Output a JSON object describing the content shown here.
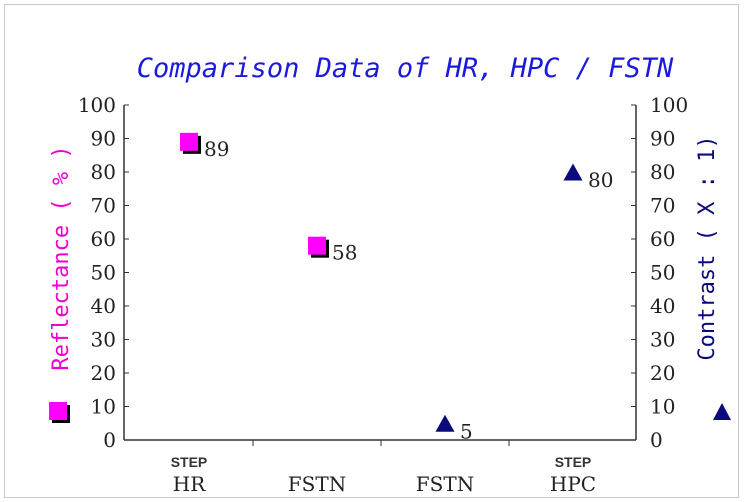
{
  "chart_data": {
    "type": "scatter",
    "title": "Comparison Data of HR, HPC / FSTN",
    "categories": [
      {
        "top": "STEP",
        "bottom": "HR"
      },
      {
        "top": "",
        "bottom": "FSTN"
      },
      {
        "top": "",
        "bottom": "FSTN"
      },
      {
        "top": "STEP",
        "bottom": "HPC"
      }
    ],
    "y_left": {
      "label": "Reflectance ( % )",
      "ylim": [
        0,
        100
      ],
      "ticks": [
        "0",
        "10",
        "20",
        "30",
        "40",
        "50",
        "60",
        "70",
        "80",
        "90",
        "100"
      ]
    },
    "y_right": {
      "label": "Contrast ( X : 1)",
      "ylim": [
        0,
        100
      ],
      "ticks": [
        "0",
        "10",
        "20",
        "30",
        "40",
        "50",
        "60",
        "70",
        "80",
        "90",
        "100"
      ]
    },
    "series": [
      {
        "axis": "left",
        "marker": "square",
        "color": "#ff00ff",
        "points": [
          {
            "category_index": 0,
            "value": 89,
            "label": "89"
          },
          {
            "category_index": 1,
            "value": 58,
            "label": "58"
          }
        ]
      },
      {
        "axis": "right",
        "marker": "triangle",
        "color": "#0a0a7a",
        "points": [
          {
            "category_index": 2,
            "value": 5,
            "label": "5"
          },
          {
            "category_index": 3,
            "value": 80,
            "label": "80"
          }
        ]
      }
    ],
    "grid": false
  }
}
